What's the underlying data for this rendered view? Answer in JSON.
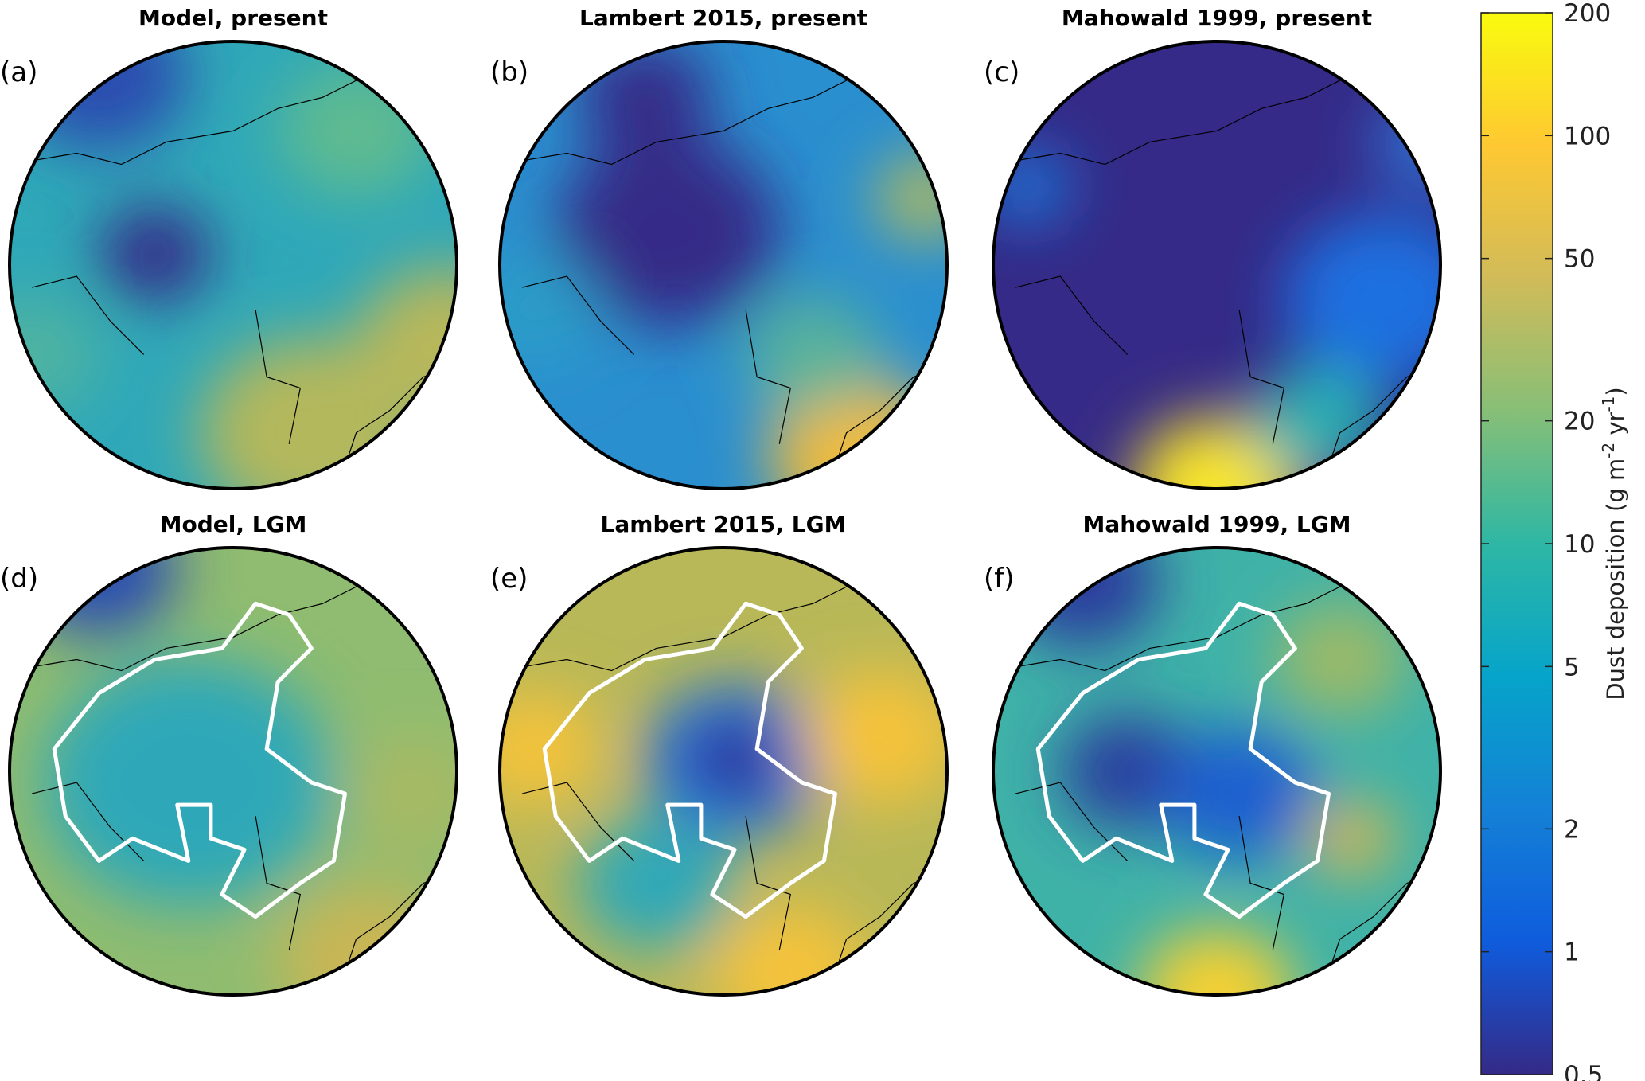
{
  "panels": [
    {
      "label": "(a)",
      "title": "Model, present"
    },
    {
      "label": "(b)",
      "title": "Lambert 2015, present"
    },
    {
      "label": "(c)",
      "title": "Mahowald 1999, present"
    },
    {
      "label": "(d)",
      "title": "Model, LGM"
    },
    {
      "label": "(e)",
      "title": "Lambert 2015, LGM"
    },
    {
      "label": "(f)",
      "title": "Mahowald 1999, LGM"
    }
  ],
  "colorbar": {
    "label": [
      "Dust deposition (g m",
      "-2",
      " yr",
      "-1",
      ")"
    ],
    "lim": [
      0.5,
      200
    ],
    "ticks": [
      0.5,
      1,
      2,
      5,
      10,
      20,
      50,
      100,
      200
    ],
    "scale": "log",
    "colormap": [
      "#352a87",
      "#0f5cdd",
      "#1481d6",
      "#06a4ca",
      "#2eb7a4",
      "#87bf77",
      "#d1bb59",
      "#fec832",
      "#f9fb0e"
    ]
  }
}
